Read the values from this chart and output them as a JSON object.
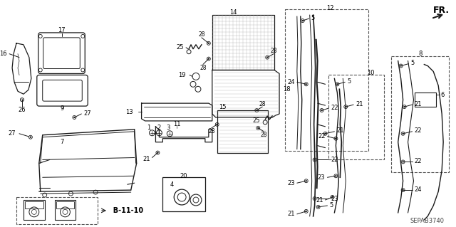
{
  "bg_color": "#ffffff",
  "line_color": "#1a1a1a",
  "watermark": "SEPAB3740",
  "fr_label": "FR.",
  "ref_label": "B-11-10"
}
